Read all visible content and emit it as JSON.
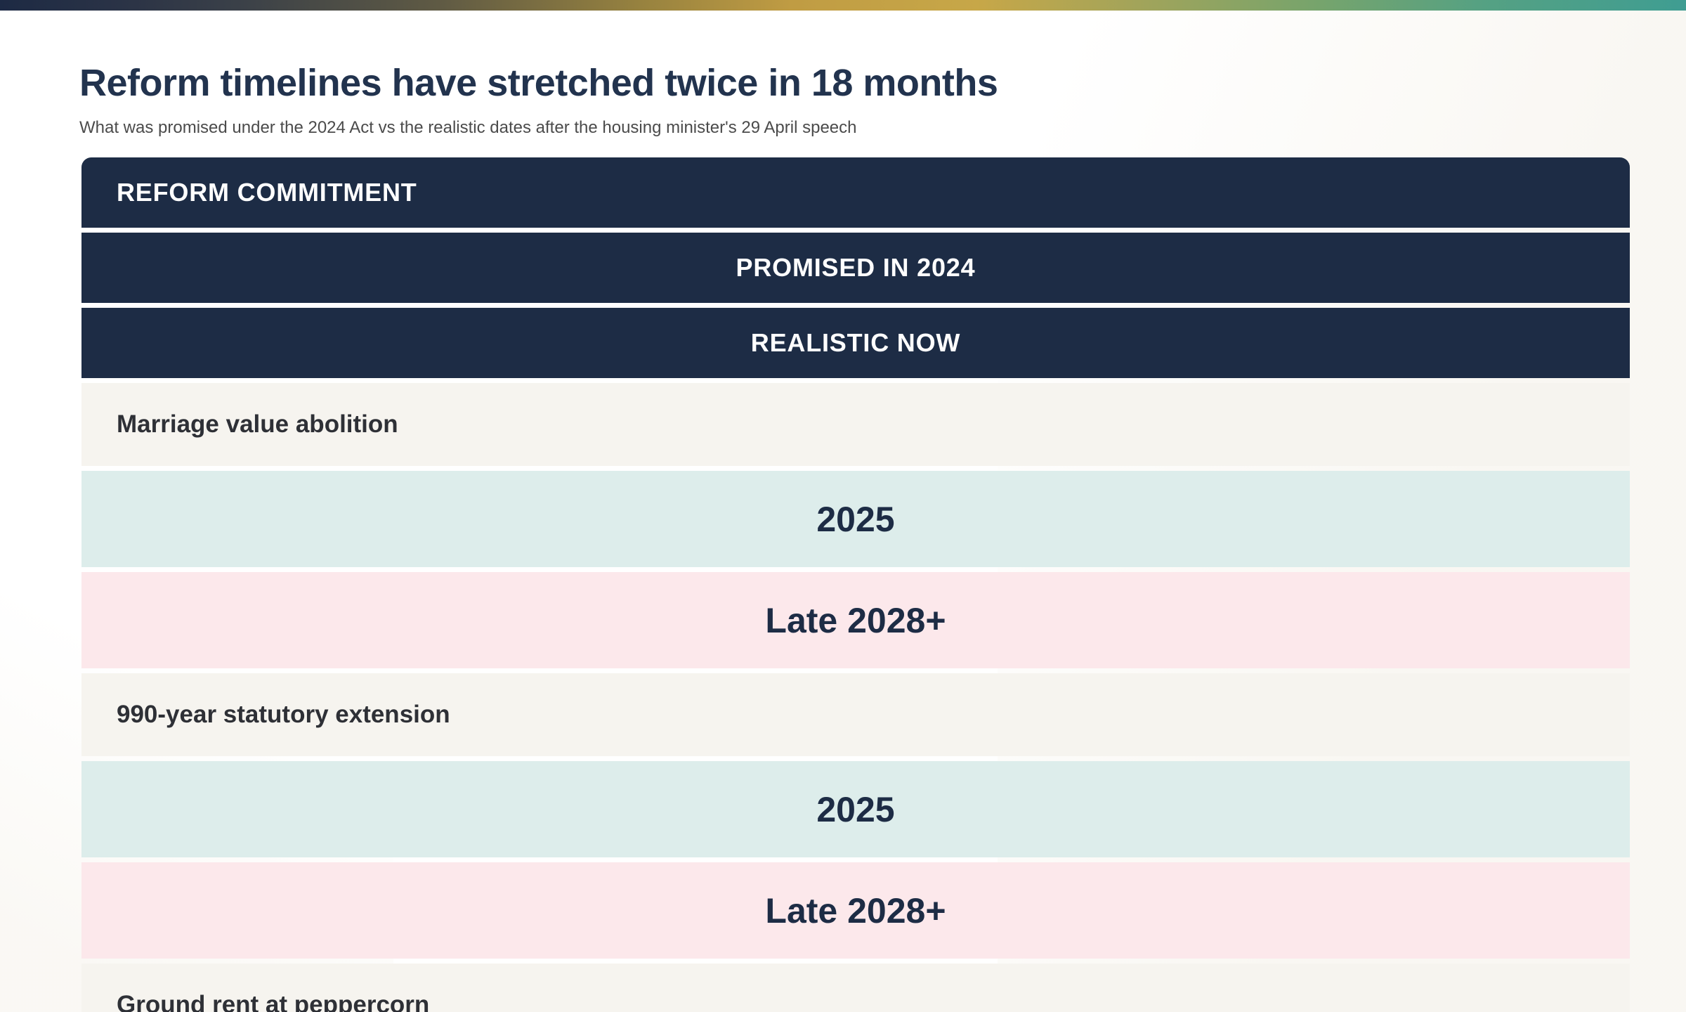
{
  "page": {
    "title": "Reform timelines have stretched twice in 18 months",
    "subtitle": "What was promised under the 2024 Act vs the realistic dates after the housing minister's 29 April speech"
  },
  "colors": {
    "header_navy": "#1d2c45",
    "title_navy": "#22334e",
    "subtitle_gray": "#4b4b4b",
    "commitment_cream": "#f6f4ef",
    "promised_teal": "#ddedeb",
    "realistic_pink": "#fce8eb",
    "gradient_bar_left": "#1d2a44",
    "gradient_bar_mid": "#c49f44",
    "gradient_bar_right": "#3f9d92"
  },
  "table": {
    "headers": [
      "REFORM COMMITMENT",
      "PROMISED IN 2024",
      "REALISTIC NOW"
    ],
    "rows": [
      {
        "commitment": "Marriage value abolition",
        "promised": "2025",
        "realistic": "Late 2028+"
      },
      {
        "commitment": "990-year statutory extension",
        "promised": "2025",
        "realistic": "Late 2028+"
      },
      {
        "commitment": "Ground rent at peppercorn"
      }
    ]
  },
  "chart_data": {
    "type": "table",
    "title": "Reform timelines have stretched twice in 18 months",
    "subtitle": "What was promised under the 2024 Act vs the realistic dates after the housing minister's 29 April speech",
    "columns": [
      "Reform commitment",
      "Promised in 2024",
      "Realistic now"
    ],
    "rows": [
      [
        "Marriage value abolition",
        "2025",
        "Late 2028+"
      ],
      [
        "990-year statutory extension",
        "2025",
        "Late 2028+"
      ],
      [
        "Ground rent at peppercorn",
        null,
        null
      ]
    ],
    "layout": "stacked-responsive-table; each cell rendered as a full-width row; third row truncated at bottom of viewport",
    "cell_colors": {
      "header": "#1d2c45",
      "commitment": "#f6f4ef",
      "promised": "#ddedeb",
      "realistic": "#fce8eb"
    }
  }
}
